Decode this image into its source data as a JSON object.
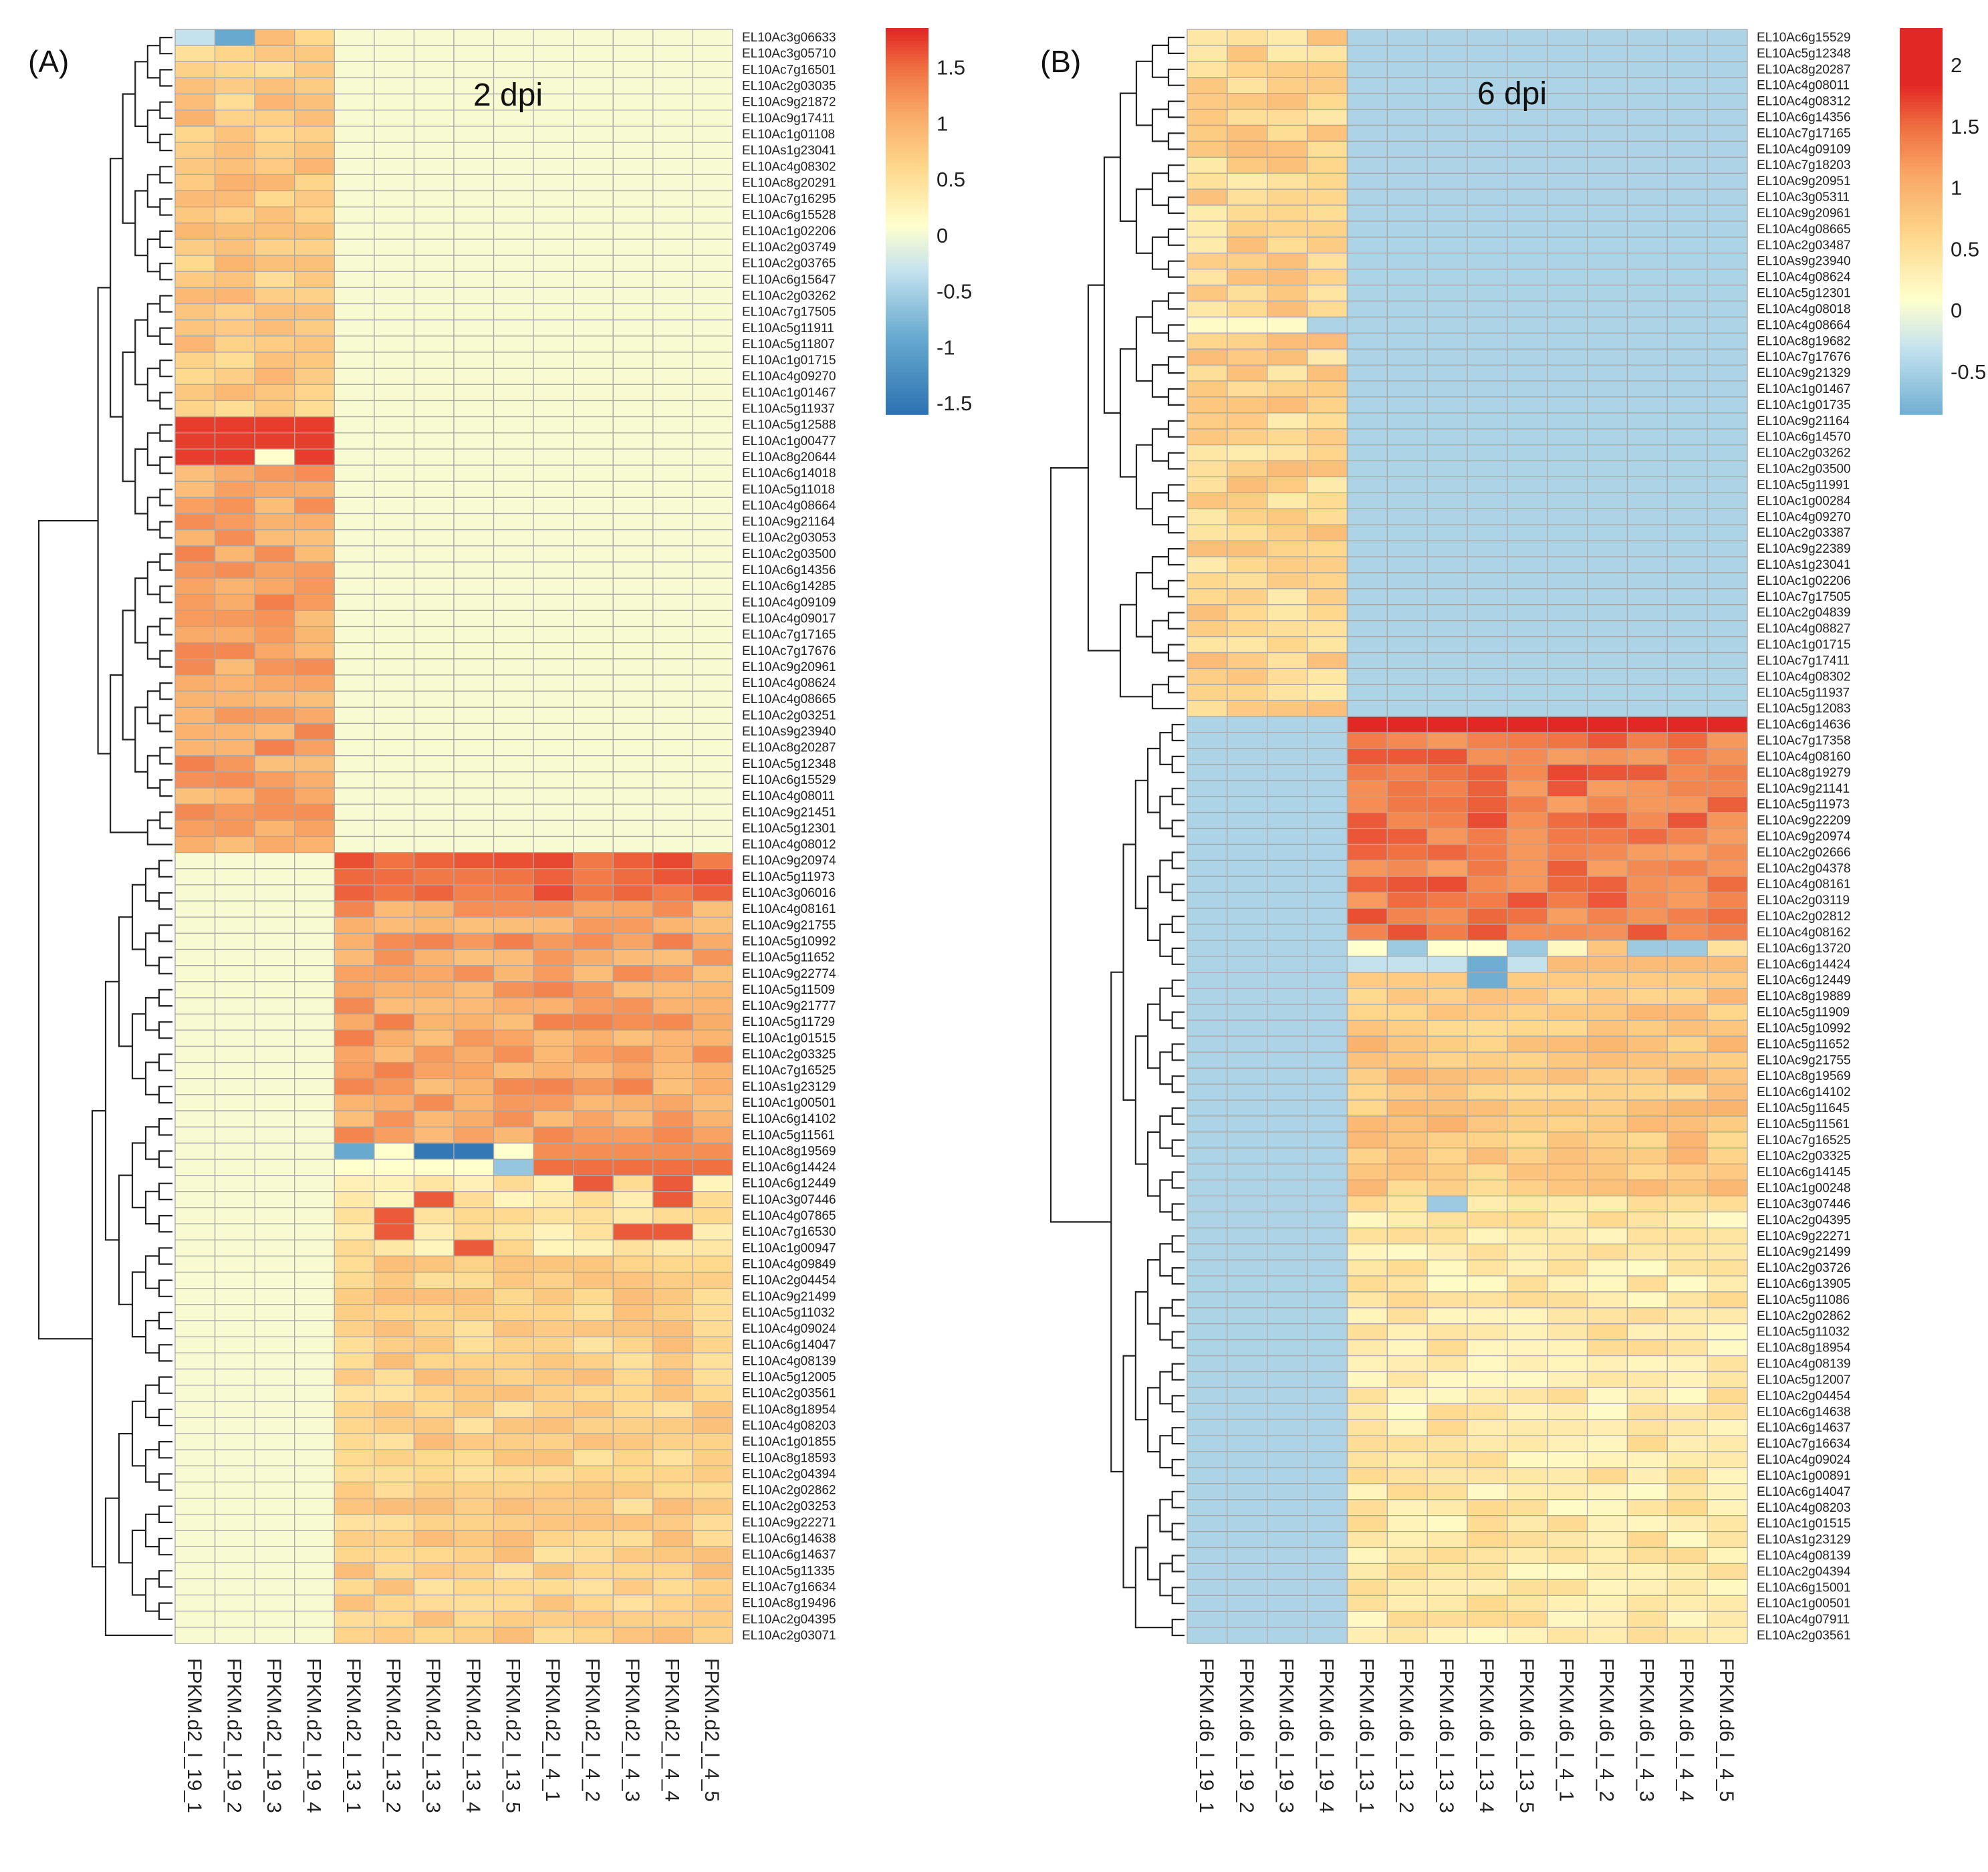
{
  "chart_data": [
    {
      "type": "heatmap",
      "panel_label": "(A)",
      "title": "2 dpi",
      "columns": [
        "FPKM.d2_l_19_1",
        "FPKM.d2_l_19_2",
        "FPKM.d2_l_19_3",
        "FPKM.d2_l_19_4",
        "FPKM.d2_l_13_1",
        "FPKM.d2_l_13_2",
        "FPKM.d2_l_13_3",
        "FPKM.d2_l_13_4",
        "FPKM.d2_l_13_5",
        "FPKM.d2_l_4_1",
        "FPKM.d2_l_4_2",
        "FPKM.d2_l_4_3",
        "FPKM.d2_l_4_4",
        "FPKM.d2_l_4_5"
      ],
      "rows": [
        "EL10Ac3g06633",
        "EL10Ac3g05710",
        "EL10Ac7g16501",
        "EL10Ac2g03035",
        "EL10Ac9g21872",
        "EL10Ac9g17411",
        "EL10Ac1g01108",
        "EL10As1g23041",
        "EL10Ac4g08302",
        "EL10Ac8g20291",
        "EL10Ac7g16295",
        "EL10Ac6g15528",
        "EL10Ac1g02206",
        "EL10Ac2g03749",
        "EL10Ac2g03765",
        "EL10Ac6g15647",
        "EL10Ac2g03262",
        "EL10Ac7g17505",
        "EL10Ac5g11911",
        "EL10Ac5g11807",
        "EL10Ac1g01715",
        "EL10Ac4g09270",
        "EL10Ac1g01467",
        "EL10Ac5g11937",
        "EL10Ac5g12588",
        "EL10Ac1g00477",
        "EL10Ac8g20644",
        "EL10Ac6g14018",
        "EL10Ac5g11018",
        "EL10Ac4g08664",
        "EL10Ac9g21164",
        "EL10Ac2g03053",
        "EL10Ac2g03500",
        "EL10Ac6g14356",
        "EL10Ac6g14285",
        "EL10Ac4g09109",
        "EL10Ac4g09017",
        "EL10Ac7g17165",
        "EL10Ac7g17676",
        "EL10Ac9g20961",
        "EL10Ac4g08624",
        "EL10Ac4g08665",
        "EL10Ac2g03251",
        "EL10As9g23940",
        "EL10Ac8g20287",
        "EL10Ac5g12348",
        "EL10Ac6g15529",
        "EL10Ac4g08011",
        "EL10Ac9g21451",
        "EL10Ac5g12301",
        "EL10Ac4g08012",
        "EL10Ac9g20974",
        "EL10Ac5g11973",
        "EL10Ac3g06016",
        "EL10Ac4g08161",
        "EL10Ac9g21755",
        "EL10Ac5g10992",
        "EL10Ac5g11652",
        "EL10Ac9g22774",
        "EL10Ac5g11509",
        "EL10Ac9g21777",
        "EL10Ac5g11729",
        "EL10Ac1g01515",
        "EL10Ac2g03325",
        "EL10Ac7g16525",
        "EL10As1g23129",
        "EL10Ac1g00501",
        "EL10Ac6g14102",
        "EL10Ac5g11561",
        "EL10Ac8g19569",
        "EL10Ac6g14424",
        "EL10Ac6g12449",
        "EL10Ac3g07446",
        "EL10Ac4g07865",
        "EL10Ac7g16530",
        "EL10Ac1g00947",
        "EL10Ac4g09849",
        "EL10Ac2g04454",
        "EL10Ac9g21499",
        "EL10Ac5g11032",
        "EL10Ac4g09024",
        "EL10Ac6g14047",
        "EL10Ac4g08139",
        "EL10Ac5g12005",
        "EL10Ac2g03561",
        "EL10Ac8g18954",
        "EL10Ac4g08203",
        "EL10Ac1g01855",
        "EL10Ac8g18593",
        "EL10Ac2g04394",
        "EL10Ac2g02862",
        "EL10Ac2g03253",
        "EL10Ac9g22271",
        "EL10Ac6g14638",
        "EL10Ac6g14637",
        "EL10Ac5g11335",
        "EL10Ac7g16634",
        "EL10Ac8g19496",
        "EL10Ac2g04395",
        "EL10Ac2g03071"
      ],
      "value_matrix_note": "row-scaled log FPKM; group 19 high in top cluster (rows 1-51), groups 13 and 4 high in bottom cluster (rows 52-100)",
      "colorbar": {
        "ticks": [
          "1.5",
          "1",
          "0.5",
          "0",
          "-0.5",
          "-1",
          "-1.5"
        ],
        "range": [
          -1.6,
          1.85
        ]
      }
    },
    {
      "type": "heatmap",
      "panel_label": "(B)",
      "title": "6 dpi",
      "columns": [
        "FPKM.d6_l_19_1",
        "FPKM.d6_l_19_2",
        "FPKM.d6_l_19_3",
        "FPKM.d6_l_19_4",
        "FPKM.d6_l_13_1",
        "FPKM.d6_l_13_2",
        "FPKM.d6_l_13_3",
        "FPKM.d6_l_13_4",
        "FPKM.d6_l_13_5",
        "FPKM.d6_l_4_1",
        "FPKM.d6_l_4_2",
        "FPKM.d6_l_4_3",
        "FPKM.d6_l_4_4",
        "FPKM.d6_l_4_5"
      ],
      "rows": [
        "EL10Ac6g15529",
        "EL10Ac5g12348",
        "EL10Ac8g20287",
        "EL10Ac4g08011",
        "EL10Ac4g08312",
        "EL10Ac6g14356",
        "EL10Ac7g17165",
        "EL10Ac4g09109",
        "EL10Ac7g18203",
        "EL10Ac9g20951",
        "EL10Ac3g05311",
        "EL10Ac9g20961",
        "EL10Ac4g08665",
        "EL10Ac2g03487",
        "EL10As9g23940",
        "EL10Ac4g08624",
        "EL10Ac5g12301",
        "EL10Ac4g08018",
        "EL10Ac4g08664",
        "EL10Ac8g19682",
        "EL10Ac7g17676",
        "EL10Ac9g21329",
        "EL10Ac1g01467",
        "EL10Ac1g01735",
        "EL10Ac9g21164",
        "EL10Ac6g14570",
        "EL10Ac2g03262",
        "EL10Ac2g03500",
        "EL10Ac5g11991",
        "EL10Ac1g00284",
        "EL10Ac4g09270",
        "EL10Ac2g03387",
        "EL10Ac9g22389",
        "EL10As1g23041",
        "EL10Ac1g02206",
        "EL10Ac7g17505",
        "EL10Ac2g04839",
        "EL10Ac4g08827",
        "EL10Ac1g01715",
        "EL10Ac7g17411",
        "EL10Ac4g08302",
        "EL10Ac5g11937",
        "EL10Ac5g12083",
        "EL10Ac6g14636",
        "EL10Ac7g17358",
        "EL10Ac4g08160",
        "EL10Ac8g19279",
        "EL10Ac9g21141",
        "EL10Ac5g11973",
        "EL10Ac9g22209",
        "EL10Ac9g20974",
        "EL10Ac2g02666",
        "EL10Ac2g04378",
        "EL10Ac4g08161",
        "EL10Ac2g03119",
        "EL10Ac2g02812",
        "EL10Ac4g08162",
        "EL10Ac6g13720",
        "EL10Ac6g14424",
        "EL10Ac6g12449",
        "EL10Ac8g19889",
        "EL10Ac5g11909",
        "EL10Ac5g10992",
        "EL10Ac5g11652",
        "EL10Ac9g21755",
        "EL10Ac8g19569",
        "EL10Ac6g14102",
        "EL10Ac5g11645",
        "EL10Ac5g11561",
        "EL10Ac7g16525",
        "EL10Ac2g03325",
        "EL10Ac6g14145",
        "EL10Ac1g00248",
        "EL10Ac3g07446",
        "EL10Ac2g04395",
        "EL10Ac9g22271",
        "EL10Ac9g21499",
        "EL10Ac2g03726",
        "EL10Ac6g13905",
        "EL10Ac5g11086",
        "EL10Ac2g02862",
        "EL10Ac5g11032",
        "EL10Ac8g18954",
        "EL10Ac4g08139",
        "EL10Ac5g12007",
        "EL10Ac2g04454",
        "EL10Ac6g14638",
        "EL10Ac6g14637",
        "EL10Ac7g16634",
        "EL10Ac4g09024",
        "EL10Ac1g00891",
        "EL10Ac6g14047",
        "EL10Ac4g08203",
        "EL10Ac1g01515",
        "EL10As1g23129",
        "EL10Ac4g08139",
        "EL10Ac2g04394",
        "EL10Ac6g15001",
        "EL10Ac1g00501",
        "EL10Ac4g07911",
        "EL10Ac2g03561"
      ],
      "value_matrix_note": "row-scaled log FPKM; group 19 high in top cluster (rows 1-43), groups 13 and 4 high in bottom cluster (rows 44-101)",
      "colorbar": {
        "ticks": [
          "2",
          "1.5",
          "1",
          "0.5",
          "0",
          "-0.5"
        ],
        "range": [
          -0.85,
          2.3
        ]
      }
    }
  ]
}
